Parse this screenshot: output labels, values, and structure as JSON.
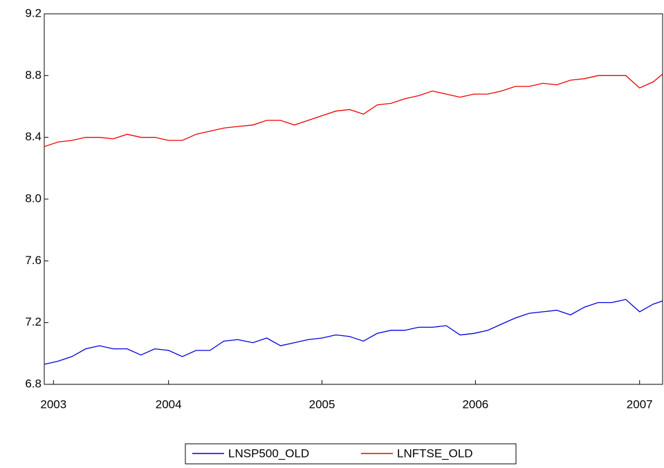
{
  "chart_data": {
    "type": "line",
    "x": [
      2003.69,
      2003.78,
      2003.87,
      2003.96,
      2004.05,
      2004.14,
      2004.23,
      2004.32,
      2004.41,
      2004.5,
      2004.59,
      2004.68,
      2004.77,
      2004.86,
      2004.95,
      2005.05,
      2005.14,
      2005.23,
      2005.32,
      2005.41,
      2005.5,
      2005.59,
      2005.68,
      2005.77,
      2005.86,
      2005.95,
      2006.04,
      2006.13,
      2006.22,
      2006.31,
      2006.4,
      2006.49,
      2006.58,
      2006.67,
      2006.76,
      2006.85,
      2006.94,
      2007.03,
      2007.12,
      2007.21,
      2007.3,
      2007.39,
      2007.48,
      2007.57,
      2007.66,
      2007.72
    ],
    "series": [
      {
        "name": "LNSP500_OLD",
        "color": "#0000dd",
        "values": [
          6.93,
          6.95,
          6.98,
          7.03,
          7.05,
          7.03,
          7.03,
          6.99,
          7.03,
          7.02,
          6.98,
          7.02,
          7.02,
          7.08,
          7.09,
          7.07,
          7.1,
          7.05,
          7.07,
          7.09,
          7.1,
          7.12,
          7.11,
          7.08,
          7.13,
          7.15,
          7.15,
          7.17,
          7.17,
          7.18,
          7.12,
          7.13,
          7.15,
          7.19,
          7.23,
          7.26,
          7.27,
          7.28,
          7.25,
          7.3,
          7.33,
          7.33,
          7.35,
          7.27,
          7.32,
          7.34
        ]
      },
      {
        "name": "LNFTSE_OLD",
        "color": "#ee0000",
        "values": [
          8.34,
          8.37,
          8.38,
          8.4,
          8.4,
          8.39,
          8.42,
          8.4,
          8.4,
          8.38,
          8.38,
          8.42,
          8.44,
          8.46,
          8.47,
          8.48,
          8.51,
          8.51,
          8.48,
          8.51,
          8.54,
          8.57,
          8.58,
          8.55,
          8.61,
          8.62,
          8.65,
          8.67,
          8.7,
          8.68,
          8.66,
          8.68,
          8.68,
          8.7,
          8.73,
          8.73,
          8.75,
          8.74,
          8.77,
          8.78,
          8.8,
          8.8,
          8.8,
          8.72,
          8.76,
          8.81
        ]
      }
    ],
    "xlim": [
      2003.69,
      2007.72
    ],
    "xticks": [
      {
        "value": 2003.75,
        "label": "2003"
      },
      {
        "value": 2004.5,
        "label": "2004"
      },
      {
        "value": 2005.5,
        "label": "2005"
      },
      {
        "value": 2006.5,
        "label": "2006"
      },
      {
        "value": 2007.57,
        "label": "2007"
      }
    ],
    "ylim": [
      6.8,
      9.2
    ],
    "yticks": [
      6.8,
      7.2,
      7.6,
      {
        "value": 8.0,
        "label": "8.0"
      },
      8.4,
      8.8,
      9.2
    ],
    "grid": false,
    "legend": "bottom"
  }
}
